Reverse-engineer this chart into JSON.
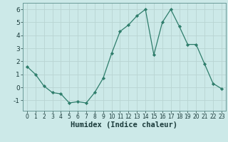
{
  "x": [
    0,
    1,
    2,
    3,
    4,
    5,
    6,
    7,
    8,
    9,
    10,
    11,
    12,
    13,
    14,
    15,
    16,
    17,
    18,
    19,
    20,
    21,
    22,
    23
  ],
  "y": [
    1.6,
    1.0,
    0.1,
    -0.4,
    -0.5,
    -1.2,
    -1.1,
    -1.2,
    -0.4,
    0.7,
    2.6,
    4.3,
    4.8,
    5.5,
    6.0,
    2.5,
    5.0,
    6.0,
    4.7,
    3.3,
    3.3,
    1.8,
    0.3,
    -0.1
  ],
  "line_color": "#2e7d6b",
  "marker": "D",
  "marker_size": 2.2,
  "bg_color": "#cce9e8",
  "grid_color": "#b8d4d2",
  "xlabel": "Humidex (Indice chaleur)",
  "ylim": [
    -1.8,
    6.5
  ],
  "xlim": [
    -0.5,
    23.5
  ],
  "yticks": [
    -1,
    0,
    1,
    2,
    3,
    4,
    5,
    6
  ],
  "xticks": [
    0,
    1,
    2,
    3,
    4,
    5,
    6,
    7,
    8,
    9,
    10,
    11,
    12,
    13,
    14,
    15,
    16,
    17,
    18,
    19,
    20,
    21,
    22,
    23
  ],
  "xtick_fontsize": 5.5,
  "ytick_fontsize": 6.5,
  "xlabel_fontsize": 7.5,
  "tick_color": "#1a3a3a",
  "spine_color": "#6a9a98"
}
